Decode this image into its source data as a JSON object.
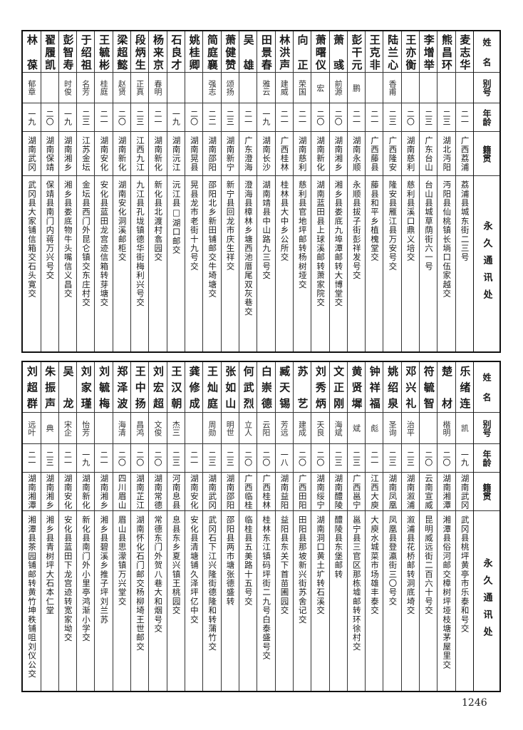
{
  "header": {
    "name": "姓名",
    "alias": "别号",
    "age": "年龄",
    "origin": "籍贯",
    "address": "永久通讯处"
  },
  "top": {
    "rows": [
      {
        "name": "麦志华",
        "alias": "",
        "age": "二一",
        "origin": "广西荔浦",
        "address": "荔浦县城东街二三号"
      },
      {
        "name": "熊昌环",
        "alias": "",
        "age": "二三",
        "origin": "湖北沔阳",
        "address": "沔阳县仙桃镇长埫口伍家越交"
      },
      {
        "name": "李增举",
        "alias": "",
        "age": "二三",
        "origin": "广东台山",
        "address": "台山县城草荫街六一号"
      },
      {
        "name": "王亦衡",
        "alias": "",
        "age": "二〇",
        "origin": "湖南慈利",
        "address": "慈利县溪口鼎义培交"
      },
      {
        "name": "陆兰心",
        "alias": "香甫",
        "age": "二三",
        "origin": "广西隆安",
        "address": "隆安县雁江县万安号交"
      },
      {
        "name": "王克非",
        "alias": "",
        "age": "二一",
        "origin": "广西藤县",
        "address": "藤县和平乡植槐堂交"
      },
      {
        "name": "彭干元",
        "alias": "鹏",
        "age": "二一",
        "origin": "湖南永顺",
        "address": "永顺县拔子街彭祥发号交"
      },
      {
        "name": "萧彧",
        "alias": "前源",
        "age": "二〇",
        "origin": "湖南湘乡",
        "address": "湘乡县娄底九埠潭邮转大博堂交"
      },
      {
        "name": "萧曙仪",
        "alias": "宏",
        "age": "二〇",
        "origin": "湖南新化",
        "address": "湖南蓝田县上球溪邮转萧家院交"
      },
      {
        "name": "向正",
        "alias": "荣国",
        "age": "二一",
        "origin": "湖南慈利",
        "address": "慈利县官地坪邮转杨树垭交"
      },
      {
        "name": "林洪声",
        "alias": "建威",
        "age": "二一",
        "origin": "广西桂林",
        "address": "桂林县大中乡公所交"
      },
      {
        "name": "田景春",
        "alias": "雅云",
        "age": "一九",
        "origin": "湖南长沙",
        "address": "湖南靖县中山路九三号交"
      },
      {
        "name": "吴雄",
        "alias": "",
        "age": "二一",
        "origin": "广东澄海",
        "address": "澄海县樟林乡塘西池厝尾双灰巷交"
      },
      {
        "name": "萧健赞",
        "alias": "颂扬",
        "age": "二三",
        "origin": "湖南新宁",
        "address": "新宁县回龙市庆生祥交"
      },
      {
        "name": "简庭襄",
        "alias": "强志",
        "age": "二二",
        "origin": "湖南邵阳",
        "address": "邵阳北乡新田铺邮交牛埼塘交"
      },
      {
        "name": "姚桂卿",
        "alias": "",
        "age": "二〇",
        "origin": "湖南晃县",
        "address": "晃县龙市老街十九号交"
      },
      {
        "name": "石良才",
        "alias": "",
        "age": "一九",
        "origin": "湖南沅江",
        "address": "沅江县□湖口邮交"
      },
      {
        "name": "杨来京",
        "alias": "春明",
        "age": "二一",
        "origin": "湖南新化",
        "address": "新化县北渡村翕园交"
      },
      {
        "name": "段炳生",
        "alias": "正真",
        "age": "二三",
        "origin": "江西九江",
        "address": "九江县孔垅镇德华街梅利兴号交"
      },
      {
        "name": "梁超懿",
        "alias": "赵贤",
        "age": "二〇",
        "origin": "湖南新化",
        "address": "湖南安化洞溪邮柜交"
      },
      {
        "name": "王毓彬",
        "alias": "桂庭",
        "age": "二一",
        "origin": "湖南安化",
        "address": "安化县蓝田龙宫迹信箱转芽塘交"
      },
      {
        "name": "于绍祖",
        "alias": "名芳",
        "age": "二三",
        "origin": "江苏金坛",
        "address": "金坛县西门外昆仑镇交东庄村交"
      },
      {
        "name": "彭智寿",
        "alias": "时俊",
        "age": "一九",
        "origin": "湖南湘乡",
        "address": "湘乡县娄底物牛头嘴信义昌交"
      },
      {
        "name": "翟履凯",
        "alias": "",
        "age": "二〇",
        "origin": "湖南保靖",
        "address": "保靖县南门内蒋万兴号交"
      },
      {
        "name": "林葆",
        "alias": "郁章",
        "age": "一九",
        "origin": "湖南武冈",
        "address": "武冈县大家铺信箱交石头寛交"
      }
    ]
  },
  "bottom": {
    "rows": [
      {
        "name": "乐绪连",
        "alias": "凯",
        "age": "一九",
        "origin": "湖南武冈",
        "address": "武冈县桃坪黄亭市乐泰和号交"
      },
      {
        "name": "楚材",
        "alias": "楷明",
        "age": "二〇",
        "origin": "湖南湘潭",
        "address": "湘潭县俗河邮交樟树坪垭枝塘茅屋里交"
      },
      {
        "name": "符毓智",
        "alias": "",
        "age": "二〇",
        "origin": "云南宣威",
        "address": "昆明威远街二百六十号交"
      },
      {
        "name": "邓兴礼",
        "alias": "治平",
        "age": "二三",
        "origin": "湖南溆浦",
        "address": "溆浦县花桥邮转洞底埼交"
      },
      {
        "name": "姚绍泉",
        "alias": "圣询",
        "age": "二三",
        "origin": "湖南凤凰",
        "address": "凤凰县登瀛街三〇号交"
      },
      {
        "name": "钟祥福",
        "alias": "彪",
        "age": "二一",
        "origin": "江西大庾",
        "address": "大庾水城菜市场雄丰泰交"
      },
      {
        "name": "黄贤墀",
        "alias": "斌",
        "age": "二三",
        "origin": "广西邕宁",
        "address": "邕宁县三官区那栋墟邮转环徐村交"
      },
      {
        "name": "文正刚",
        "alias": "海斌",
        "age": "二三",
        "origin": "湖南醴陵",
        "address": "醴陵县东堡邮转"
      },
      {
        "name": "刘秀炳",
        "alias": "天良",
        "age": "二〇",
        "origin": "湖南绥宁",
        "address": "湖南洞口黄土圹转石溪交"
      },
      {
        "name": "苏艺",
        "alias": "建成",
        "age": "二〇",
        "origin": "广西田阳",
        "address": "田阳县那坡新兴街苏舍记交"
      },
      {
        "name": "臧天锡",
        "alias": "芳远",
        "age": "一八",
        "origin": "湖南益阳",
        "address": "益阳县东关下首苗圃园交"
      },
      {
        "name": "白崇德",
        "alias": "云阳",
        "age": "二〇",
        "origin": "广西桂林",
        "address": "桂林东江镇码坪街二九号白泰盛号交"
      },
      {
        "name": "何武烈",
        "alias": "立人",
        "age": "二〇",
        "origin": "广西临桂",
        "address": "临桂县五美路十五号交"
      },
      {
        "name": "张如山",
        "alias": "明世",
        "age": "二三",
        "origin": "湖南邵阳",
        "address": "邵阳县两市塘张德盛转"
      },
      {
        "name": "王灿庭",
        "alias": "周勋",
        "age": "二三",
        "origin": "湖南武冈",
        "address": "武冈石下江兴隆街德隆和转蒲竹交"
      },
      {
        "name": "龚修成",
        "alias": "",
        "age": "二一",
        "origin": "湖南安化",
        "address": "安化县清塘铺久泽坪亿中交"
      },
      {
        "name": "王汉朝",
        "alias": "杰三",
        "age": "二三",
        "origin": "河南息县",
        "address": "息县东乡夏兴镇王桃园交"
      },
      {
        "name": "刘宏超",
        "alias": "文俊",
        "age": "二〇",
        "origin": "湖南常德",
        "address": "常德东门外贺八巷大和烟号交"
      },
      {
        "name": "王中扬",
        "alias": "昌鸿",
        "age": "二〇",
        "origin": "湖南芷江",
        "address": "湖南怀化石门邮交杨柳埼王世邮交"
      },
      {
        "name": "郑泽波",
        "alias": "海清",
        "age": "二〇",
        "origin": "四川眉山",
        "address": "眉山县思濛镇万兴堂交"
      },
      {
        "name": "刘毓梅",
        "alias": "",
        "age": "二一",
        "origin": "湖南湘乡",
        "address": "湘乡县碧溪乡推子坪刘兰苏"
      },
      {
        "name": "刘家瑾",
        "alias": "怡芳",
        "age": "一九",
        "origin": "湖南新化",
        "address": "新化县南门外小里亭鸿渐小学交"
      },
      {
        "name": "吴龙",
        "alias": "宋企",
        "age": "二一",
        "origin": "湖南安化",
        "address": "安化县蓝田下龙宫迹转宽家坳交"
      },
      {
        "name": "朱振声",
        "alias": "典",
        "age": "二三",
        "origin": "湖南湘乡",
        "address": "湘乡县青树坪大石本仁堂"
      },
      {
        "name": "刘超群",
        "alias": "远叶",
        "age": "二一",
        "origin": "湖南湘潭",
        "address": "湘潭县茶园铺邮转黄竹坤秩铺咀刘仪公交"
      }
    ]
  },
  "page_number": "1246"
}
